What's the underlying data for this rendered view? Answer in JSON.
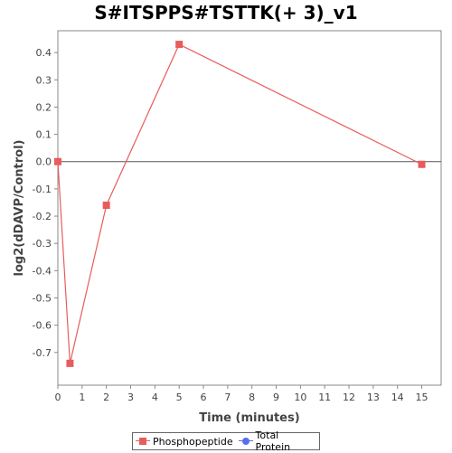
{
  "chart_data": {
    "type": "line",
    "title": "S#ITSPPS#TSTTK(+ 3)_v1",
    "xlabel": "Time (minutes)",
    "ylabel": "log2(dDAVP/Control)",
    "xlim": [
      0,
      15.8
    ],
    "ylim": [
      -0.82,
      0.48
    ],
    "xticks": [
      0,
      1,
      2,
      3,
      4,
      5,
      6,
      7,
      8,
      9,
      10,
      11,
      12,
      13,
      14,
      15
    ],
    "yticks": [
      0.4,
      0.3,
      0.2,
      0.1,
      0.0,
      -0.1,
      -0.2,
      -0.3,
      -0.4,
      -0.5,
      -0.6,
      -0.7
    ],
    "ytick_labels": [
      "0.4",
      "0.3",
      "0.2",
      "0.1",
      "0.0",
      "-0.1",
      "-0.2",
      "-0.3",
      "-0.4",
      "-0.5",
      "-0.6",
      "-0.7"
    ],
    "grid": false,
    "legend_position": "bottom",
    "series": [
      {
        "name": "Phosphopeptide",
        "color": "#e85c5c",
        "marker": "square",
        "x": [
          0,
          0.5,
          2,
          5,
          15
        ],
        "y": [
          0.0,
          -0.74,
          -0.16,
          0.43,
          -0.01
        ]
      },
      {
        "name": "Total Protein",
        "color": "#5a6ee8",
        "marker": "circle",
        "x": [],
        "y": []
      }
    ]
  }
}
